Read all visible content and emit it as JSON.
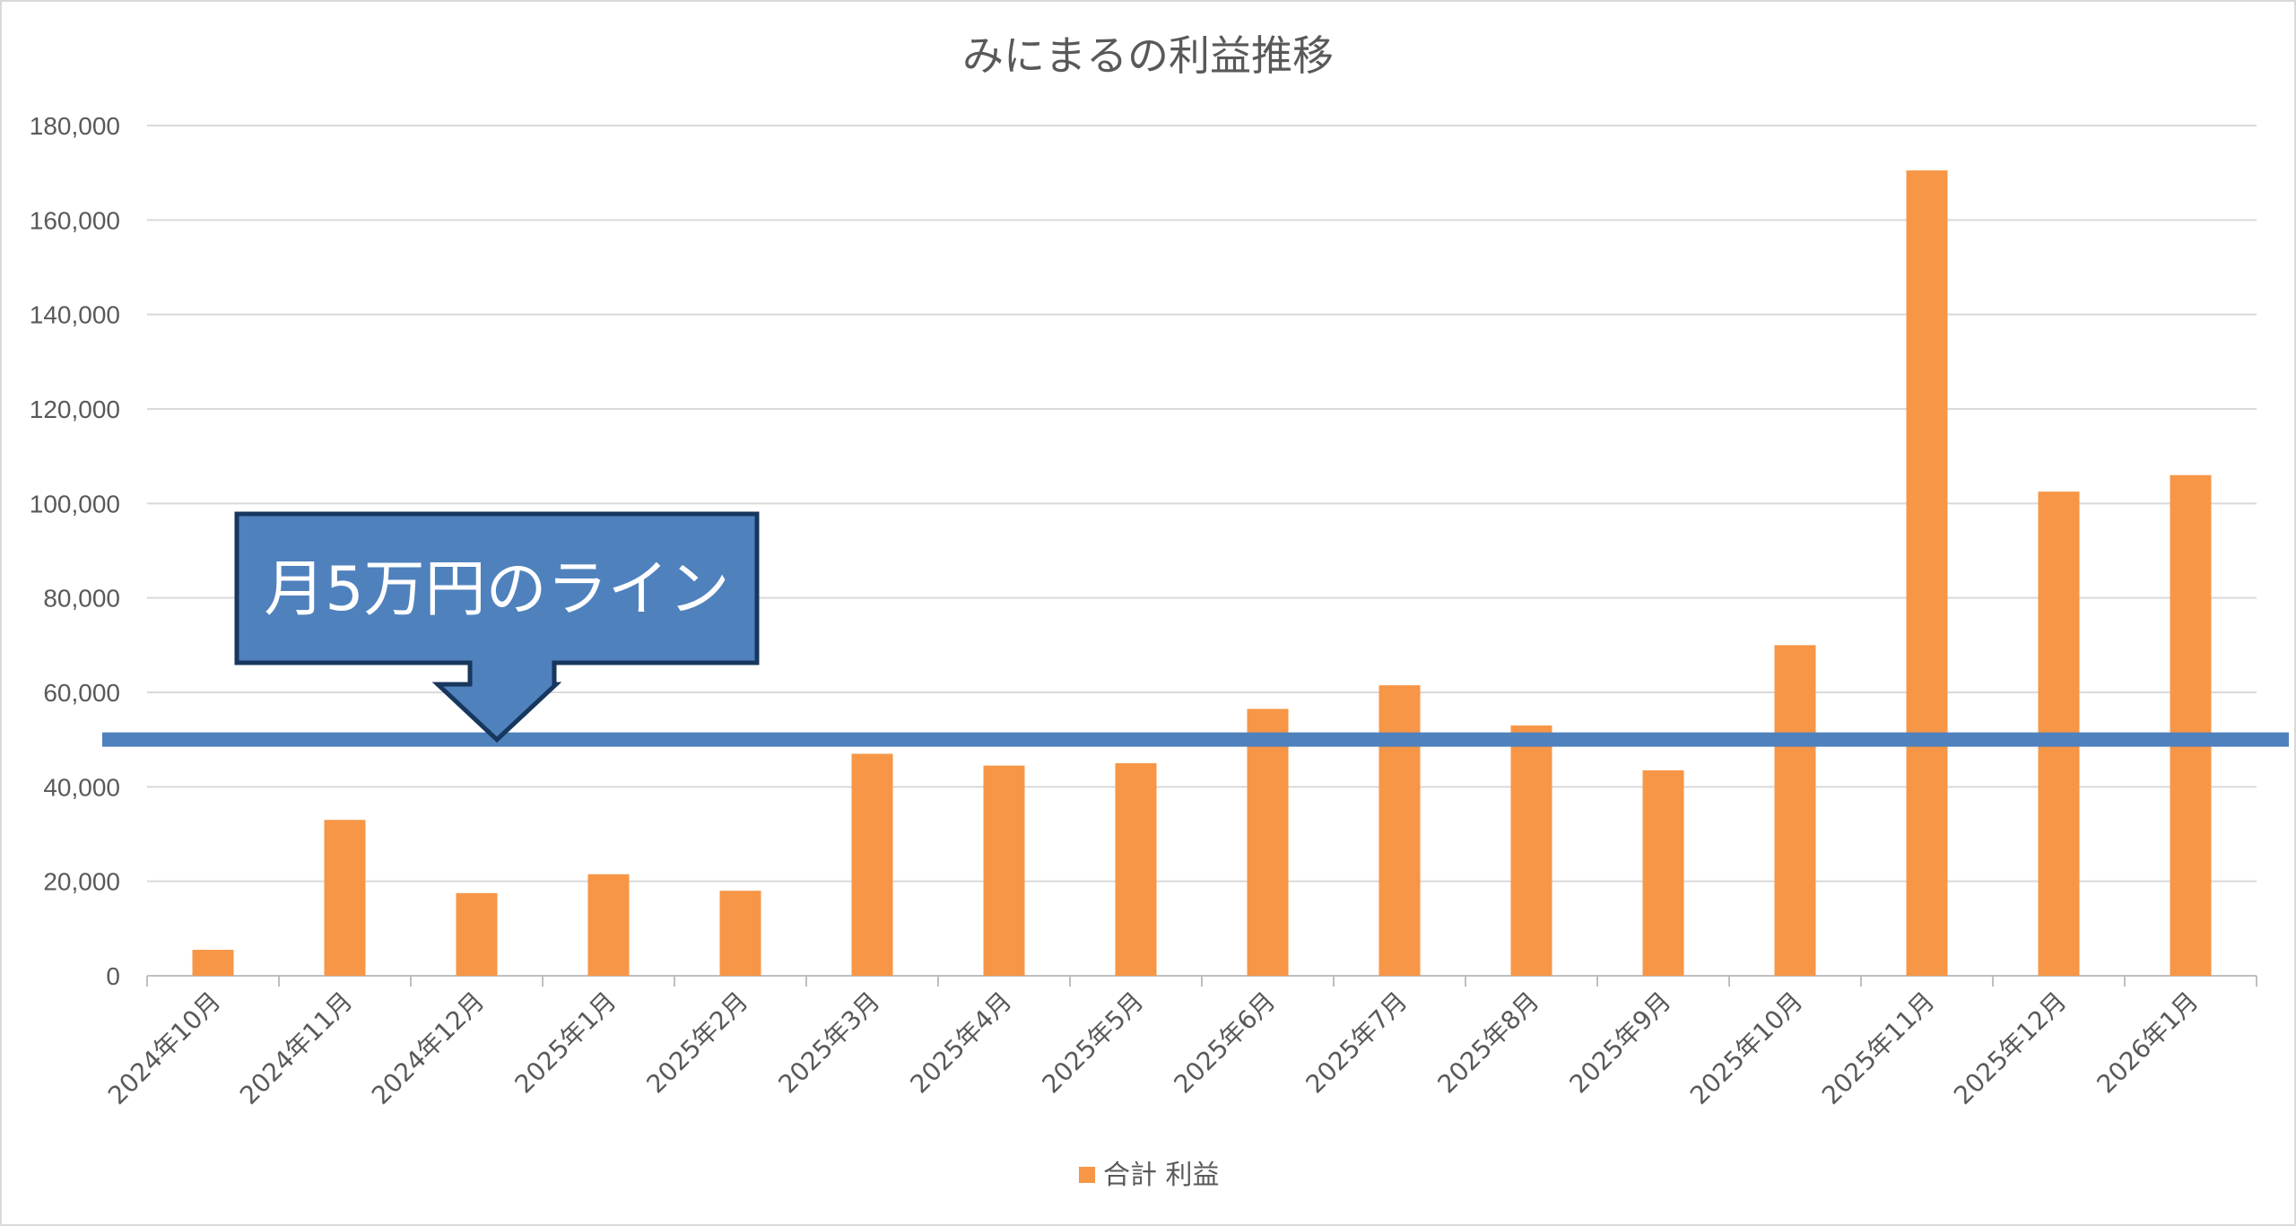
{
  "chart_data": {
    "type": "bar",
    "title": "みにまるの利益推移",
    "xlabel": "",
    "ylabel": "",
    "categories": [
      "2024年10月",
      "2024年11月",
      "2024年12月",
      "2025年1月",
      "2025年2月",
      "2025年3月",
      "2025年4月",
      "2025年5月",
      "2025年6月",
      "2025年7月",
      "2025年8月",
      "2025年9月",
      "2025年10月",
      "2025年11月",
      "2025年12月",
      "2026年1月"
    ],
    "series": [
      {
        "name": "合計 利益",
        "color": "#f79646",
        "values": [
          5500,
          33000,
          17500,
          21500,
          18000,
          47000,
          44500,
          45000,
          56500,
          61500,
          53000,
          43500,
          70000,
          170500,
          102500,
          106000
        ]
      }
    ],
    "ylim": [
      0,
      180000
    ],
    "ytick_step": 20000,
    "ytick_labels": [
      "0",
      "20,000",
      "40,000",
      "60,000",
      "80,000",
      "100,000",
      "120,000",
      "140,000",
      "160,000",
      "180,000"
    ],
    "grid": true,
    "legend_position": "bottom",
    "reference_line": {
      "value": 50000,
      "color": "#4f81bd"
    },
    "annotation": {
      "text": "月5万円のライン",
      "fill": "#4f81bd",
      "border": "#17375e",
      "points_to": 50000
    }
  }
}
